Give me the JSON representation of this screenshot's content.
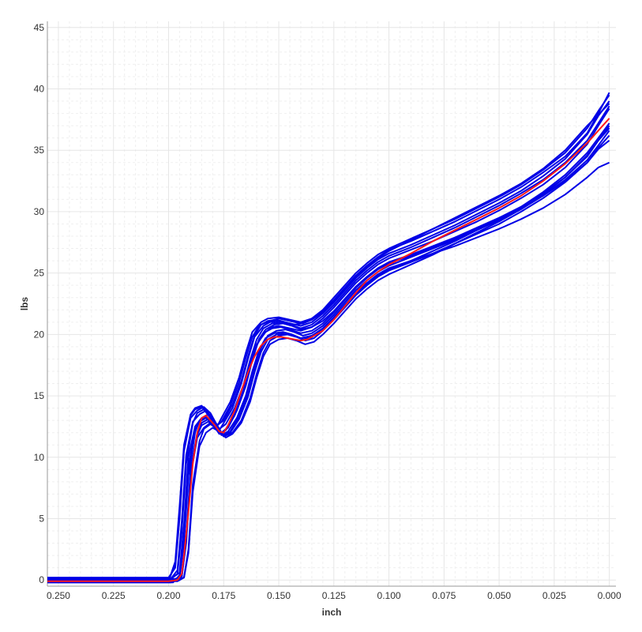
{
  "chart_data": {
    "type": "line",
    "title": "",
    "xlabel": "inch",
    "ylabel": "lbs",
    "xlim": [
      0.255,
      -0.003
    ],
    "ylim": [
      -0.5,
      45.5
    ],
    "x_reversed": true,
    "grid": true,
    "legend": "none",
    "x_ticks": [
      "0.250",
      "0.225",
      "0.200",
      "0.175",
      "0.150",
      "0.125",
      "0.100",
      "0.075",
      "0.050",
      "0.025",
      "0.000"
    ],
    "x_tick_values": [
      0.25,
      0.225,
      0.2,
      0.175,
      0.15,
      0.125,
      0.1,
      0.075,
      0.05,
      0.025,
      0.0
    ],
    "y_ticks": [
      "0",
      "5",
      "10",
      "15",
      "20",
      "25",
      "30",
      "35",
      "40",
      "45"
    ],
    "y_tick_values": [
      0,
      5,
      10,
      15,
      20,
      25,
      30,
      35,
      40,
      45
    ],
    "colors": {
      "sample": "#0000e6",
      "average": "#ff1a1a",
      "grid": "#e6e6e6",
      "minor_grid": "#efefef",
      "axis": "#999999"
    },
    "series": [
      {
        "role": "sample",
        "x": [
          0.255,
          0.2,
          0.197,
          0.195,
          0.193,
          0.19,
          0.188,
          0.185,
          0.182,
          0.178,
          0.176,
          0.172,
          0.168,
          0.165,
          0.162,
          0.158,
          0.155,
          0.15,
          0.145,
          0.14,
          0.135,
          0.13,
          0.125,
          0.12,
          0.115,
          0.11,
          0.105,
          0.1,
          0.09,
          0.08,
          0.07,
          0.06,
          0.05,
          0.04,
          0.03,
          0.02,
          0.01,
          0.005,
          0.0
        ],
        "y": [
          -0.1,
          -0.1,
          1.5,
          6,
          11,
          13.5,
          14,
          14.2,
          13.5,
          12.5,
          13.2,
          14.5,
          16.5,
          18.5,
          20.2,
          21,
          21.3,
          21.4,
          21.2,
          21,
          21.3,
          22,
          23,
          24,
          25,
          25.8,
          26.5,
          27,
          27.8,
          28.6,
          29.4,
          30.3,
          31.2,
          32.2,
          33.4,
          34.8,
          36.8,
          38.2,
          39.5
        ]
      },
      {
        "role": "sample",
        "x": [
          0.255,
          0.2,
          0.196,
          0.194,
          0.192,
          0.189,
          0.187,
          0.184,
          0.181,
          0.177,
          0.175,
          0.171,
          0.167,
          0.164,
          0.161,
          0.157,
          0.154,
          0.15,
          0.145,
          0.14,
          0.135,
          0.13,
          0.125,
          0.12,
          0.115,
          0.11,
          0.105,
          0.1,
          0.09,
          0.08,
          0.07,
          0.06,
          0.05,
          0.04,
          0.03,
          0.02,
          0.01,
          0.005,
          0.0
        ],
        "y": [
          0,
          0,
          0.5,
          4,
          9.5,
          12.8,
          13.6,
          13.9,
          13.2,
          12.2,
          12.8,
          14,
          16,
          18,
          19.8,
          20.7,
          21,
          21.1,
          20.9,
          20.7,
          21,
          21.7,
          22.6,
          23.6,
          24.6,
          25.4,
          26.1,
          26.6,
          27.3,
          28.1,
          28.9,
          29.8,
          30.7,
          31.7,
          32.9,
          34.3,
          36.3,
          37.8,
          39
        ]
      },
      {
        "role": "sample",
        "x": [
          0.255,
          0.199,
          0.195,
          0.193,
          0.191,
          0.188,
          0.186,
          0.183,
          0.18,
          0.176,
          0.174,
          0.17,
          0.166,
          0.163,
          0.16,
          0.156,
          0.153,
          0.15,
          0.145,
          0.14,
          0.135,
          0.13,
          0.125,
          0.12,
          0.115,
          0.11,
          0.105,
          0.1,
          0.09,
          0.08,
          0.07,
          0.06,
          0.05,
          0.04,
          0.03,
          0.02,
          0.01,
          0.005,
          0.0
        ],
        "y": [
          -0.2,
          -0.2,
          0.2,
          3,
          8.5,
          12,
          13,
          13.3,
          12.8,
          12,
          12.3,
          13.5,
          15.5,
          17.5,
          19.2,
          20.2,
          20.6,
          20.7,
          20.5,
          20.3,
          20.6,
          21.3,
          22.2,
          23.2,
          24.2,
          25,
          25.7,
          26.2,
          26.9,
          27.6,
          28.4,
          29.2,
          30.1,
          31.1,
          32.2,
          33.6,
          35.5,
          37,
          38.4
        ]
      },
      {
        "role": "sample",
        "x": [
          0.255,
          0.199,
          0.195,
          0.193,
          0.191,
          0.188,
          0.185,
          0.182,
          0.179,
          0.176,
          0.173,
          0.169,
          0.165,
          0.162,
          0.159,
          0.156,
          0.152,
          0.148,
          0.144,
          0.14,
          0.135,
          0.13,
          0.125,
          0.12,
          0.115,
          0.11,
          0.105,
          0.1,
          0.09,
          0.08,
          0.07,
          0.06,
          0.05,
          0.04,
          0.03,
          0.02,
          0.01,
          0.005,
          0.0
        ],
        "y": [
          0.1,
          0.1,
          0.6,
          4.5,
          10,
          12.5,
          13.2,
          13.5,
          12.9,
          12,
          12.4,
          13.8,
          15.8,
          17.9,
          19.6,
          20.4,
          20.8,
          20.9,
          20.7,
          20.4,
          20.6,
          21.1,
          21.9,
          22.9,
          23.9,
          24.7,
          25.4,
          25.9,
          26.5,
          27.2,
          27.9,
          28.7,
          29.5,
          30.4,
          31.5,
          32.8,
          34.5,
          35.8,
          37
        ]
      },
      {
        "role": "sample",
        "x": [
          0.255,
          0.198,
          0.194,
          0.192,
          0.19,
          0.187,
          0.185,
          0.182,
          0.179,
          0.175,
          0.172,
          0.168,
          0.164,
          0.161,
          0.158,
          0.155,
          0.151,
          0.147,
          0.143,
          0.139,
          0.135,
          0.13,
          0.125,
          0.12,
          0.115,
          0.11,
          0.105,
          0.1,
          0.09,
          0.08,
          0.07,
          0.06,
          0.05,
          0.04,
          0.03,
          0.02,
          0.01,
          0.005,
          0.0
        ],
        "y": [
          -0.1,
          -0.1,
          0.3,
          3.5,
          9,
          12,
          12.8,
          13.1,
          12.6,
          11.8,
          12.1,
          13.3,
          15.2,
          17.2,
          18.9,
          19.9,
          20.3,
          20.4,
          20.2,
          19.9,
          20.1,
          20.7,
          21.6,
          22.6,
          23.6,
          24.4,
          25.1,
          25.6,
          26.3,
          27,
          27.7,
          28.5,
          29.3,
          30.2,
          31.3,
          32.6,
          34.2,
          35.4,
          36.6
        ]
      },
      {
        "role": "sample",
        "x": [
          0.255,
          0.197,
          0.193,
          0.191,
          0.189,
          0.186,
          0.184,
          0.181,
          0.178,
          0.175,
          0.171,
          0.167,
          0.163,
          0.16,
          0.157,
          0.154,
          0.15,
          0.146,
          0.142,
          0.138,
          0.134,
          0.13,
          0.125,
          0.12,
          0.115,
          0.11,
          0.105,
          0.1,
          0.09,
          0.08,
          0.07,
          0.06,
          0.05,
          0.04,
          0.03,
          0.02,
          0.01,
          0.005,
          0.0
        ],
        "y": [
          0,
          0,
          0.2,
          2.5,
          7.8,
          11.3,
          12.3,
          12.7,
          12.3,
          11.7,
          12,
          13,
          14.8,
          16.8,
          18.5,
          19.5,
          19.9,
          20,
          19.8,
          19.5,
          19.7,
          20.3,
          21.2,
          22.2,
          23.2,
          24,
          24.7,
          25.2,
          25.9,
          26.6,
          27.4,
          28.2,
          29,
          30,
          31.1,
          32.4,
          34,
          35.2,
          36.2
        ]
      },
      {
        "role": "sample",
        "x": [
          0.255,
          0.2,
          0.197,
          0.195,
          0.193,
          0.19,
          0.187,
          0.184,
          0.181,
          0.178,
          0.175,
          0.171,
          0.167,
          0.164,
          0.161,
          0.158,
          0.154,
          0.15,
          0.145,
          0.14,
          0.135,
          0.13,
          0.125,
          0.12,
          0.115,
          0.11,
          0.105,
          0.1,
          0.09,
          0.08,
          0.07,
          0.06,
          0.05,
          0.04,
          0.03,
          0.02,
          0.01,
          0.005,
          0.0
        ],
        "y": [
          0.2,
          0.2,
          1,
          5,
          10.5,
          13.2,
          13.8,
          14.1,
          13.6,
          12.6,
          13,
          14.3,
          16.2,
          18.2,
          19.9,
          20.8,
          21.1,
          21.3,
          21.1,
          20.9,
          21.2,
          21.9,
          22.8,
          23.8,
          24.8,
          25.6,
          26.3,
          26.9,
          27.6,
          28.4,
          29.2,
          30.1,
          31,
          32,
          33.2,
          34.5,
          36.4,
          38,
          39.7
        ]
      },
      {
        "role": "sample",
        "x": [
          0.255,
          0.198,
          0.195,
          0.193,
          0.191,
          0.188,
          0.186,
          0.183,
          0.18,
          0.177,
          0.174,
          0.17,
          0.166,
          0.163,
          0.16,
          0.157,
          0.153,
          0.149,
          0.145,
          0.14,
          0.135,
          0.13,
          0.125,
          0.12,
          0.115,
          0.11,
          0.105,
          0.1,
          0.09,
          0.08,
          0.07,
          0.06,
          0.05,
          0.04,
          0.03,
          0.02,
          0.01,
          0.005,
          0.0
        ],
        "y": [
          -0.2,
          -0.2,
          0.4,
          3.8,
          9.2,
          12.2,
          12.9,
          13.2,
          12.7,
          11.9,
          12.2,
          13.4,
          15.4,
          17.4,
          19.1,
          20.1,
          20.5,
          20.6,
          20.4,
          20.1,
          20.3,
          20.9,
          21.8,
          22.8,
          23.8,
          24.6,
          25.3,
          25.8,
          26.4,
          27.1,
          27.8,
          28.6,
          29.4,
          30.3,
          31.3,
          32.5,
          34,
          35.1,
          35.8
        ]
      },
      {
        "role": "sample",
        "x": [
          0.255,
          0.197,
          0.194,
          0.192,
          0.19,
          0.187,
          0.185,
          0.182,
          0.179,
          0.176,
          0.173,
          0.169,
          0.165,
          0.162,
          0.159,
          0.156,
          0.152,
          0.148,
          0.144,
          0.14,
          0.135,
          0.13,
          0.125,
          0.12,
          0.115,
          0.11,
          0.105,
          0.1,
          0.09,
          0.08,
          0.07,
          0.06,
          0.05,
          0.04,
          0.03,
          0.02,
          0.01,
          0.005,
          0.0
        ],
        "y": [
          0,
          0,
          0.3,
          3.2,
          8.8,
          11.8,
          12.6,
          12.9,
          12.5,
          11.8,
          12.1,
          13.2,
          15,
          17,
          18.7,
          19.7,
          20.1,
          20.2,
          20,
          19.7,
          19.9,
          20.5,
          21.4,
          22.4,
          23.4,
          24.2,
          24.9,
          25.4,
          26,
          26.6,
          27.2,
          27.9,
          28.6,
          29.4,
          30.3,
          31.4,
          32.8,
          33.6,
          34
        ]
      },
      {
        "role": "sample",
        "x": [
          0.255,
          0.199,
          0.196,
          0.194,
          0.192,
          0.189,
          0.186,
          0.183,
          0.18,
          0.177,
          0.174,
          0.17,
          0.166,
          0.163,
          0.16,
          0.157,
          0.153,
          0.149,
          0.145,
          0.14,
          0.135,
          0.13,
          0.125,
          0.12,
          0.115,
          0.11,
          0.105,
          0.1,
          0.09,
          0.08,
          0.07,
          0.06,
          0.05,
          0.04,
          0.03,
          0.02,
          0.01,
          0.005,
          0.0
        ],
        "y": [
          0.1,
          0.1,
          0.8,
          4.8,
          10.2,
          12.9,
          13.5,
          13.8,
          13.2,
          12.3,
          12.7,
          14,
          15.9,
          17.9,
          19.6,
          20.5,
          20.9,
          21,
          20.8,
          20.5,
          20.8,
          21.5,
          22.4,
          23.4,
          24.4,
          25.2,
          25.9,
          26.4,
          27.1,
          27.9,
          28.7,
          29.6,
          30.5,
          31.5,
          32.6,
          34,
          35.8,
          37.2,
          38.6
        ]
      },
      {
        "role": "sample",
        "x": [
          0.255,
          0.196,
          0.193,
          0.191,
          0.189,
          0.186,
          0.183,
          0.18,
          0.177,
          0.174,
          0.171,
          0.167,
          0.163,
          0.16,
          0.157,
          0.154,
          0.15,
          0.146,
          0.142,
          0.138,
          0.134,
          0.13,
          0.125,
          0.12,
          0.115,
          0.11,
          0.105,
          0.1,
          0.09,
          0.08,
          0.07,
          0.06,
          0.05,
          0.04,
          0.03,
          0.02,
          0.01,
          0.005,
          0.0
        ],
        "y": [
          -0.1,
          -0.1,
          0.2,
          2.2,
          7.2,
          10.9,
          12,
          12.4,
          12.1,
          11.6,
          11.9,
          12.8,
          14.5,
          16.5,
          18.2,
          19.2,
          19.6,
          19.7,
          19.5,
          19.2,
          19.4,
          20,
          20.9,
          21.9,
          22.9,
          23.7,
          24.4,
          24.9,
          25.7,
          26.5,
          27.4,
          28.3,
          29.2,
          30.2,
          31.4,
          32.8,
          34.6,
          35.8,
          36.8
        ]
      },
      {
        "role": "sample",
        "x": [
          0.255,
          0.2,
          0.197,
          0.195,
          0.193,
          0.19,
          0.188,
          0.185,
          0.182,
          0.179,
          0.176,
          0.172,
          0.168,
          0.165,
          0.162,
          0.159,
          0.155,
          0.151,
          0.147,
          0.143,
          0.139,
          0.135,
          0.13,
          0.125,
          0.12,
          0.115,
          0.11,
          0.105,
          0.1,
          0.09,
          0.08,
          0.07,
          0.06,
          0.05,
          0.04,
          0.03,
          0.02,
          0.01,
          0.0
        ],
        "y": [
          0,
          0,
          1.2,
          5.5,
          10.8,
          13.4,
          13.9,
          14.1,
          13.5,
          12.5,
          12.9,
          14.2,
          16.1,
          18.1,
          19.8,
          20.7,
          21.1,
          21.2,
          21,
          20.8,
          20.9,
          21.2,
          21.8,
          22.7,
          23.7,
          24.7,
          25.5,
          26.2,
          26.8,
          27.7,
          28.6,
          29.5,
          30.4,
          31.3,
          32.3,
          33.5,
          35,
          37,
          38.8
        ]
      },
      {
        "role": "sample",
        "x": [
          0.255,
          0.197,
          0.194,
          0.192,
          0.19,
          0.187,
          0.184,
          0.181,
          0.178,
          0.175,
          0.172,
          0.168,
          0.164,
          0.161,
          0.158,
          0.155,
          0.151,
          0.147,
          0.143,
          0.139,
          0.135,
          0.13,
          0.125,
          0.12,
          0.115,
          0.11,
          0.105,
          0.1,
          0.09,
          0.08,
          0.07,
          0.06,
          0.05,
          0.04,
          0.03,
          0.02,
          0.01,
          0.005,
          0.0
        ],
        "y": [
          0.1,
          0.1,
          0.3,
          3,
          8.5,
          11.6,
          12.4,
          12.8,
          12.4,
          11.7,
          12,
          13.1,
          14.9,
          16.9,
          18.6,
          19.6,
          20,
          20.1,
          19.9,
          19.6,
          19.8,
          20.4,
          21.3,
          22.3,
          23.3,
          24.1,
          24.8,
          25.3,
          26,
          26.8,
          27.6,
          28.5,
          29.4,
          30.4,
          31.6,
          33,
          34.8,
          36,
          37.2
        ]
      }
    ],
    "average": {
      "x": [
        0.255,
        0.2,
        0.196,
        0.194,
        0.193,
        0.191,
        0.189,
        0.187,
        0.185,
        0.183,
        0.181,
        0.179,
        0.177,
        0.175,
        0.173,
        0.17,
        0.167,
        0.164,
        0.161,
        0.158,
        0.155,
        0.152,
        0.149,
        0.146,
        0.143,
        0.14,
        0.137,
        0.134,
        0.13,
        0.125,
        0.12,
        0.115,
        0.11,
        0.105,
        0.1,
        0.09,
        0.08,
        0.07,
        0.06,
        0.05,
        0.04,
        0.03,
        0.02,
        0.01,
        0.005,
        0.0
      ],
      "y": [
        -0.1,
        -0.1,
        0,
        0.5,
        2,
        5.5,
        9.5,
        12,
        13.2,
        13.4,
        13,
        12.6,
        12.1,
        12,
        12.6,
        13.8,
        15.4,
        16.9,
        18.2,
        19.1,
        19.6,
        19.8,
        19.8,
        19.7,
        19.6,
        19.5,
        19.6,
        19.9,
        20.3,
        21.2,
        22.3,
        23.4,
        24.4,
        25.1,
        25.7,
        26.6,
        27.6,
        28.5,
        29.4,
        30.3,
        31.3,
        32.5,
        33.9,
        35.6,
        36.6,
        37.6
      ]
    }
  }
}
